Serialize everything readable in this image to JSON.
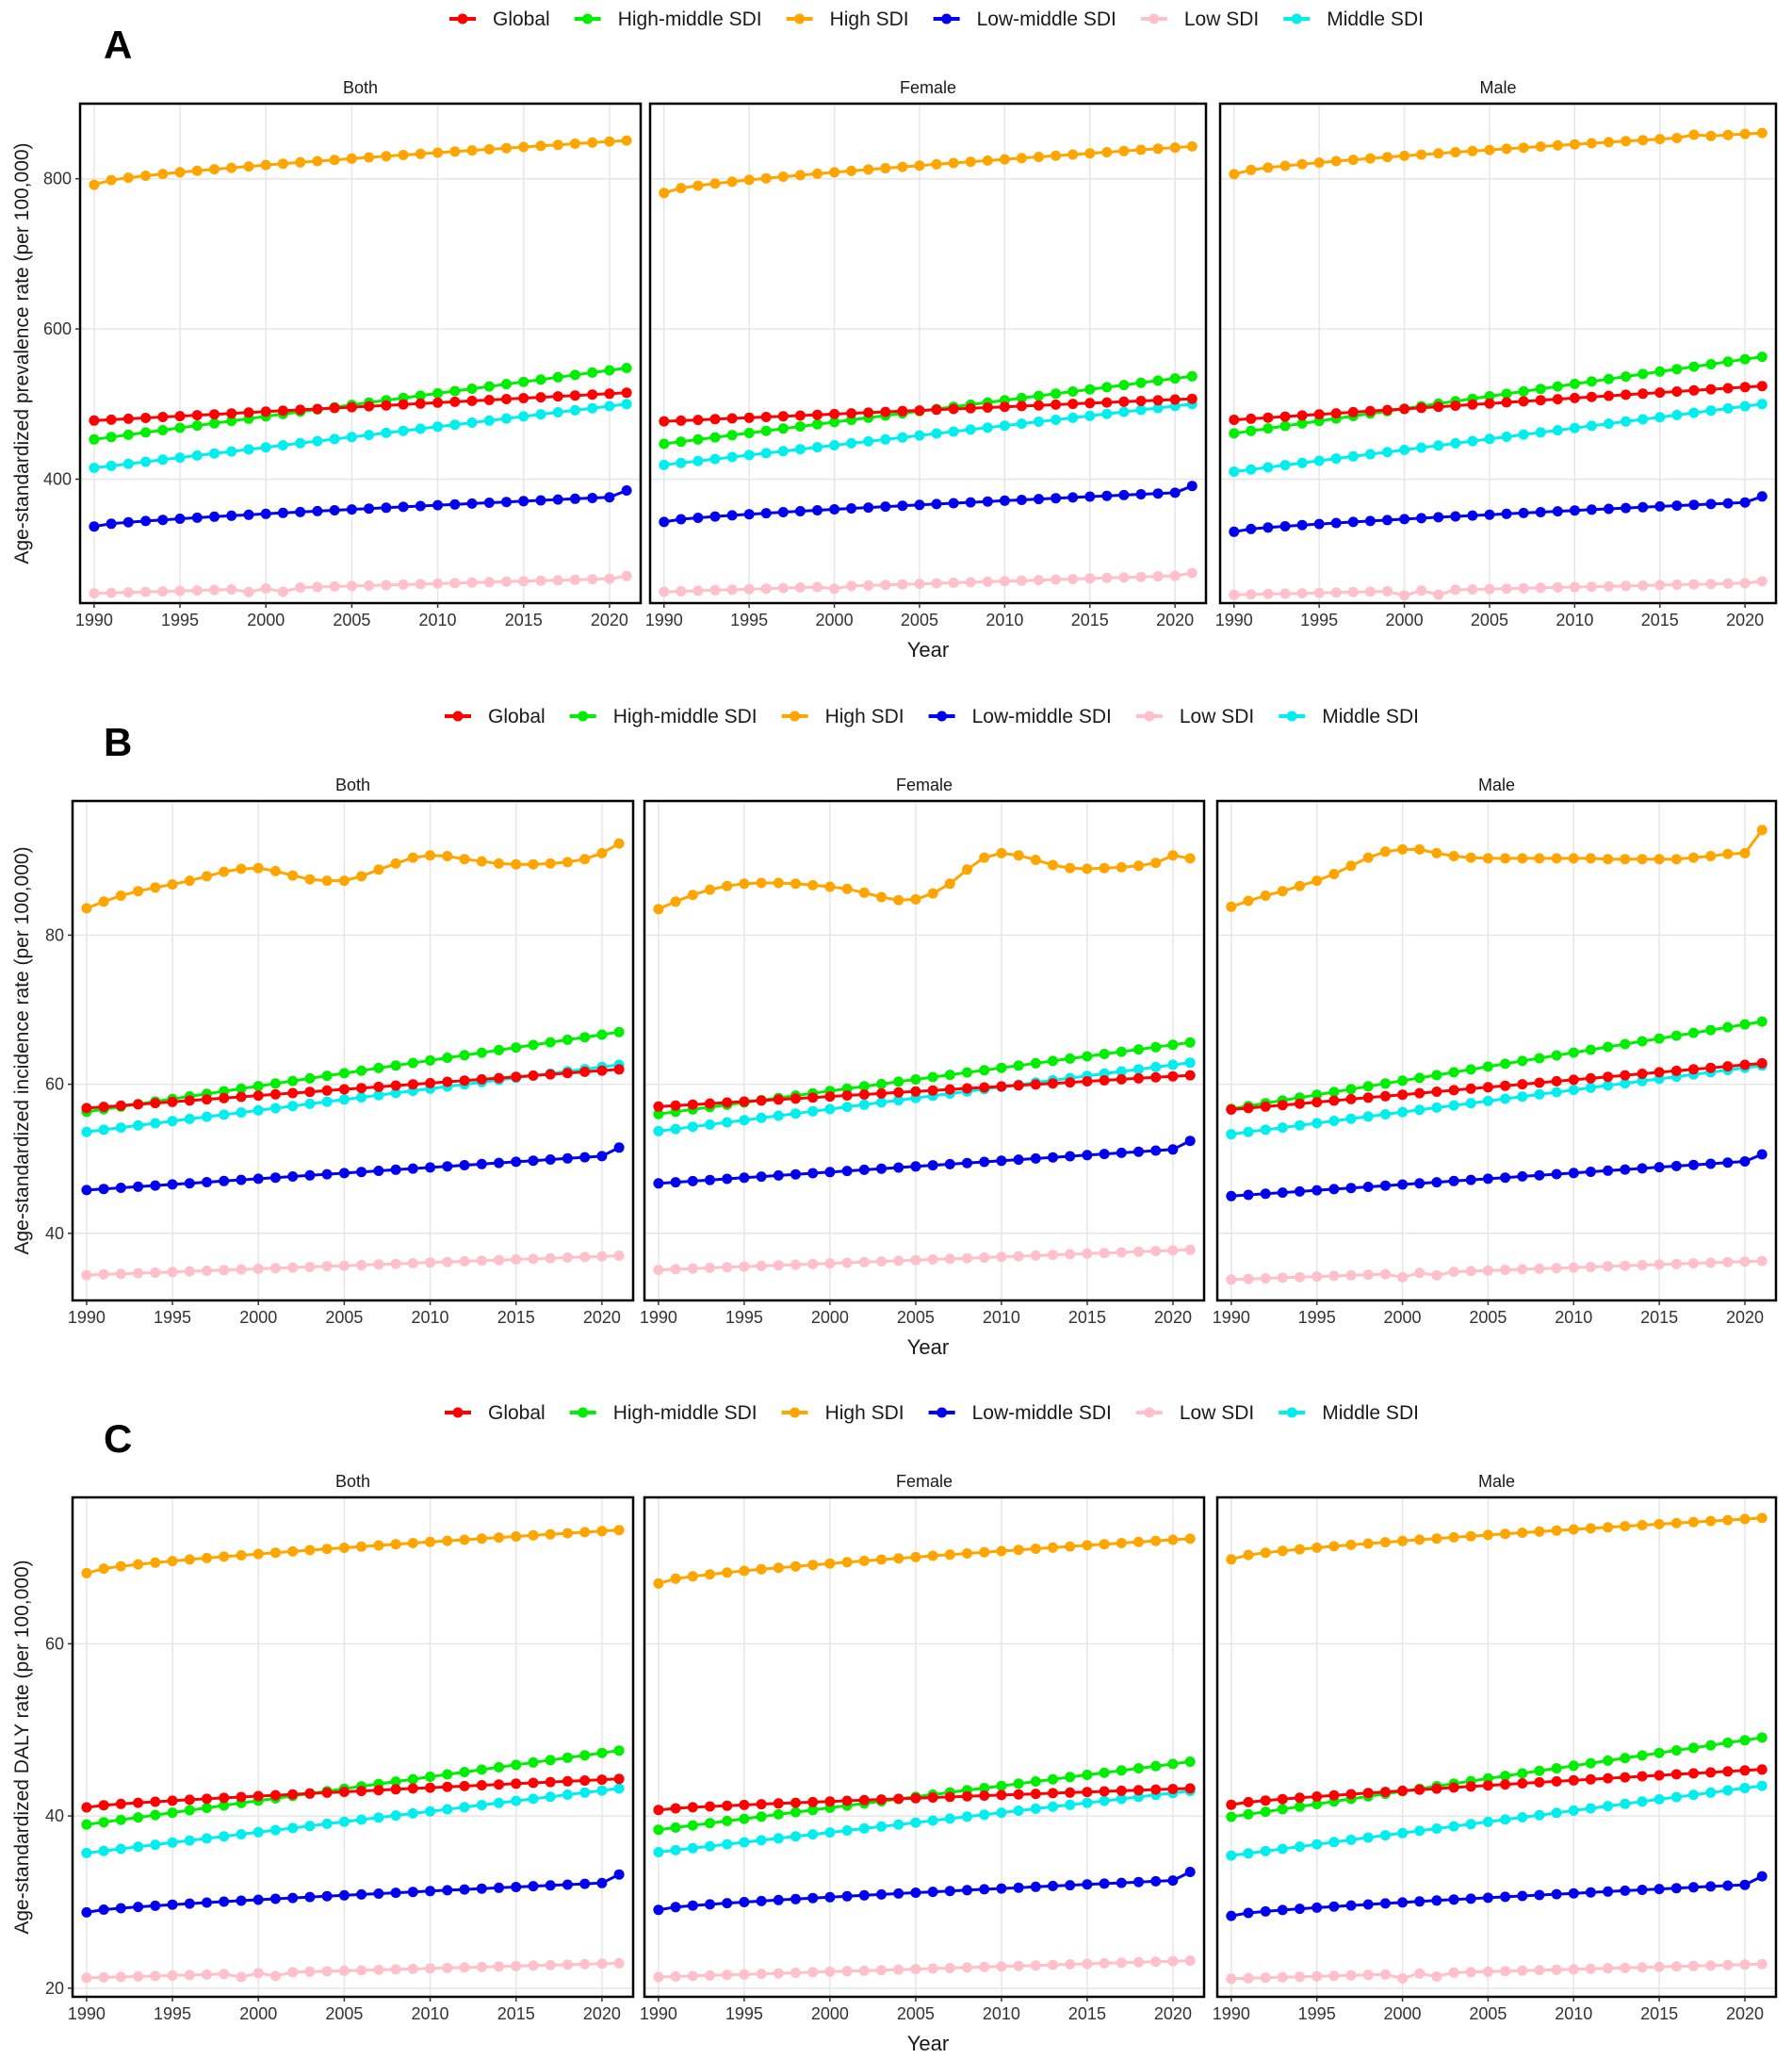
{
  "chart_data": {
    "type": "line",
    "x": [
      1990,
      1991,
      1992,
      1993,
      1994,
      1995,
      1996,
      1997,
      1998,
      1999,
      2000,
      2001,
      2002,
      2003,
      2004,
      2005,
      2006,
      2007,
      2008,
      2009,
      2010,
      2011,
      2012,
      2013,
      2014,
      2015,
      2016,
      2017,
      2018,
      2019,
      2020,
      2021
    ],
    "xticks": [
      1990,
      1995,
      2000,
      2005,
      2010,
      2015,
      2020
    ],
    "xlabel": "Year",
    "facets": [
      "Both",
      "Female",
      "Male"
    ],
    "legend": [
      {
        "name": "Global",
        "color": "#ff0000"
      },
      {
        "name": "High-middle SDI",
        "color": "#00ee00"
      },
      {
        "name": "High SDI",
        "color": "#ffa500"
      },
      {
        "name": "Low-middle SDI",
        "color": "#0000ee"
      },
      {
        "name": "Low SDI",
        "color": "#ffc0cb"
      },
      {
        "name": "Middle SDI",
        "color": "#00eeee"
      }
    ],
    "panels": [
      {
        "label": "A",
        "ylabel": "Age-standardized prevalence rate (per 100,000)",
        "ylim": [
          235,
          900
        ],
        "yticks": [
          400,
          600,
          800
        ],
        "facets": [
          {
            "title": "Both",
            "series": {
              "Global": {
                "start": 478,
                "end": 515,
                "wiggle": []
              },
              "High-middle SDI": {
                "start": 453,
                "end": 548,
                "wiggle": []
              },
              "High SDI": {
                "start": 792,
                "end": 851,
                "curve": 0.5,
                "wiggle": []
              },
              "Low-middle SDI": {
                "start": 337,
                "end": 377,
                "curve": 0.4,
                "wiggle": [
                  [
                    31,
                    8
                  ]
                ]
              },
              "Low SDI": {
                "start": 248,
                "end": 268,
                "wiggle": [
                  [
                    9,
                    -4
                  ],
                  [
                    11,
                    -5
                  ],
                  [
                    31,
                    3
                  ]
                ]
              },
              "Middle SDI": {
                "start": 415,
                "end": 500,
                "wiggle": []
              }
            }
          },
          {
            "title": "Female",
            "series": {
              "Global": {
                "start": 477,
                "end": 507,
                "wiggle": []
              },
              "High-middle SDI": {
                "start": 447,
                "end": 537,
                "wiggle": []
              },
              "High SDI": {
                "start": 781,
                "end": 843,
                "curve": 0.5,
                "wiggle": []
              },
              "Low-middle SDI": {
                "start": 343,
                "end": 383,
                "curve": 0.4,
                "wiggle": [
                  [
                    31,
                    8
                  ]
                ]
              },
              "Low SDI": {
                "start": 250,
                "end": 272,
                "wiggle": [
                  [
                    10,
                    -3
                  ],
                  [
                    31,
                    3
                  ]
                ]
              },
              "Middle SDI": {
                "start": 419,
                "end": 500,
                "wiggle": []
              }
            }
          },
          {
            "title": "Male",
            "series": {
              "Global": {
                "start": 479,
                "end": 524,
                "wiggle": []
              },
              "High-middle SDI": {
                "start": 461,
                "end": 563,
                "wiggle": []
              },
              "High SDI": {
                "start": 806,
                "end": 861,
                "curve": 0.5,
                "wiggle": [
                  [
                    27,
                    3
                  ]
                ]
              },
              "Low-middle SDI": {
                "start": 330,
                "end": 370,
                "curve": 0.4,
                "wiggle": [
                  [
                    31,
                    7
                  ]
                ]
              },
              "Low SDI": {
                "start": 246,
                "end": 262,
                "wiggle": [
                  [
                    10,
                    -6
                  ],
                  [
                    12,
                    -6
                  ],
                  [
                    31,
                    2
                  ]
                ]
              },
              "Middle SDI": {
                "start": 410,
                "end": 500,
                "wiggle": []
              }
            }
          }
        ]
      },
      {
        "label": "B",
        "ylabel": "Age-standardized incidence rate (per 100,000)",
        "ylim": [
          31,
          98
        ],
        "yticks": [
          40,
          60,
          80
        ],
        "facets": [
          {
            "title": "Both",
            "series": {
              "Global": {
                "start": 56.8,
                "end": 62.0,
                "wiggle": []
              },
              "High-middle SDI": {
                "start": 56.3,
                "end": 67.0,
                "wiggle": []
              },
              "High SDI": {
                "values": [
                  83.6,
                  84.5,
                  85.3,
                  85.9,
                  86.4,
                  86.8,
                  87.3,
                  87.9,
                  88.5,
                  88.9,
                  89.0,
                  88.6,
                  88.0,
                  87.5,
                  87.3,
                  87.3,
                  87.9,
                  88.8,
                  89.6,
                  90.4,
                  90.7,
                  90.6,
                  90.2,
                  89.9,
                  89.6,
                  89.5,
                  89.5,
                  89.6,
                  89.8,
                  90.2,
                  91.0,
                  92.3
                ]
              },
              "Low-middle SDI": {
                "start": 45.8,
                "end": 50.5,
                "wiggle": [
                  [
                    31,
                    1.0
                  ]
                ]
              },
              "Low SDI": {
                "start": 34.4,
                "end": 37.0,
                "wiggle": []
              },
              "Middle SDI": {
                "start": 53.6,
                "end": 62.6,
                "wiggle": []
              }
            }
          },
          {
            "title": "Female",
            "series": {
              "Global": {
                "start": 57.0,
                "end": 61.2,
                "wiggle": []
              },
              "High-middle SDI": {
                "start": 56.0,
                "end": 65.6,
                "wiggle": []
              },
              "High SDI": {
                "values": [
                  83.5,
                  84.5,
                  85.4,
                  86.1,
                  86.6,
                  86.9,
                  87.0,
                  87.0,
                  86.9,
                  86.7,
                  86.5,
                  86.2,
                  85.7,
                  85.1,
                  84.7,
                  84.8,
                  85.6,
                  86.9,
                  88.8,
                  90.4,
                  91.0,
                  90.7,
                  90.1,
                  89.4,
                  89.0,
                  88.9,
                  89.0,
                  89.1,
                  89.3,
                  89.7,
                  90.7,
                  90.3
                ]
              },
              "Low-middle SDI": {
                "start": 46.7,
                "end": 51.4,
                "wiggle": [
                  [
                    31,
                    1.0
                  ]
                ]
              },
              "Low SDI": {
                "start": 35.1,
                "end": 37.8,
                "wiggle": []
              },
              "Middle SDI": {
                "start": 53.7,
                "end": 62.9,
                "wiggle": []
              }
            }
          },
          {
            "title": "Male",
            "series": {
              "Global": {
                "start": 56.6,
                "end": 62.8,
                "wiggle": []
              },
              "High-middle SDI": {
                "start": 56.7,
                "end": 68.4,
                "wiggle": []
              },
              "High SDI": {
                "values": [
                  83.8,
                  84.6,
                  85.3,
                  85.9,
                  86.6,
                  87.3,
                  88.2,
                  89.3,
                  90.4,
                  91.2,
                  91.5,
                  91.5,
                  91.0,
                  90.6,
                  90.4,
                  90.3,
                  90.3,
                  90.3,
                  90.3,
                  90.3,
                  90.3,
                  90.3,
                  90.2,
                  90.2,
                  90.2,
                  90.2,
                  90.2,
                  90.4,
                  90.6,
                  90.9,
                  91.0,
                  94.1
                ]
              },
              "Low-middle SDI": {
                "start": 45.0,
                "end": 49.8,
                "wiggle": [
                  [
                    31,
                    0.8
                  ]
                ]
              },
              "Low SDI": {
                "start": 33.8,
                "end": 36.3,
                "wiggle": [
                  [
                    10,
                    -0.5
                  ],
                  [
                    12,
                    -0.4
                  ]
                ]
              },
              "Middle SDI": {
                "start": 53.3,
                "end": 62.5,
                "wiggle": []
              }
            }
          }
        ]
      },
      {
        "label": "C",
        "ylabel": "Age-standardized DALY rate (per 100,000)",
        "ylim": [
          19,
          77
        ],
        "yticks": [
          20,
          40,
          60
        ],
        "facets": [
          {
            "title": "Both",
            "series": {
              "Global": {
                "start": 41.0,
                "end": 44.3,
                "curve": 0.3,
                "wiggle": []
              },
              "High-middle SDI": {
                "start": 39.0,
                "end": 47.6,
                "wiggle": []
              },
              "High SDI": {
                "start": 68.2,
                "end": 73.2,
                "curve": 0.5,
                "wiggle": []
              },
              "Low-middle SDI": {
                "start": 28.8,
                "end": 32.3,
                "curve": 0.4,
                "wiggle": [
                  [
                    31,
                    0.9
                  ]
                ]
              },
              "Low SDI": {
                "start": 21.2,
                "end": 22.9,
                "wiggle": [
                  [
                    9,
                    -0.4
                  ],
                  [
                    11,
                    -0.4
                  ]
                ]
              },
              "Middle SDI": {
                "start": 35.7,
                "end": 43.2,
                "wiggle": []
              }
            }
          },
          {
            "title": "Female",
            "series": {
              "Global": {
                "start": 40.7,
                "end": 43.2,
                "curve": 0.3,
                "wiggle": []
              },
              "High-middle SDI": {
                "start": 38.4,
                "end": 46.3,
                "wiggle": []
              },
              "High SDI": {
                "start": 67.0,
                "end": 72.2,
                "curve": 0.5,
                "wiggle": []
              },
              "Low-middle SDI": {
                "start": 29.1,
                "end": 32.6,
                "curve": 0.4,
                "wiggle": [
                  [
                    31,
                    0.9
                  ]
                ]
              },
              "Low SDI": {
                "start": 21.3,
                "end": 23.2,
                "wiggle": []
              },
              "Middle SDI": {
                "start": 35.8,
                "end": 42.9,
                "wiggle": []
              }
            }
          },
          {
            "title": "Male",
            "series": {
              "Global": {
                "start": 41.3,
                "end": 45.4,
                "curve": 0.3,
                "wiggle": []
              },
              "High-middle SDI": {
                "start": 39.9,
                "end": 49.1,
                "wiggle": []
              },
              "High SDI": {
                "start": 69.8,
                "end": 74.6,
                "curve": 0.5,
                "wiggle": []
              },
              "Low-middle SDI": {
                "start": 28.4,
                "end": 32.1,
                "curve": 0.4,
                "wiggle": [
                  [
                    31,
                    0.9
                  ]
                ]
              },
              "Low SDI": {
                "start": 21.1,
                "end": 22.8,
                "wiggle": [
                  [
                    10,
                    -0.5
                  ],
                  [
                    12,
                    -0.4
                  ]
                ]
              },
              "Middle SDI": {
                "start": 35.4,
                "end": 43.5,
                "wiggle": []
              }
            }
          }
        ]
      }
    ]
  }
}
